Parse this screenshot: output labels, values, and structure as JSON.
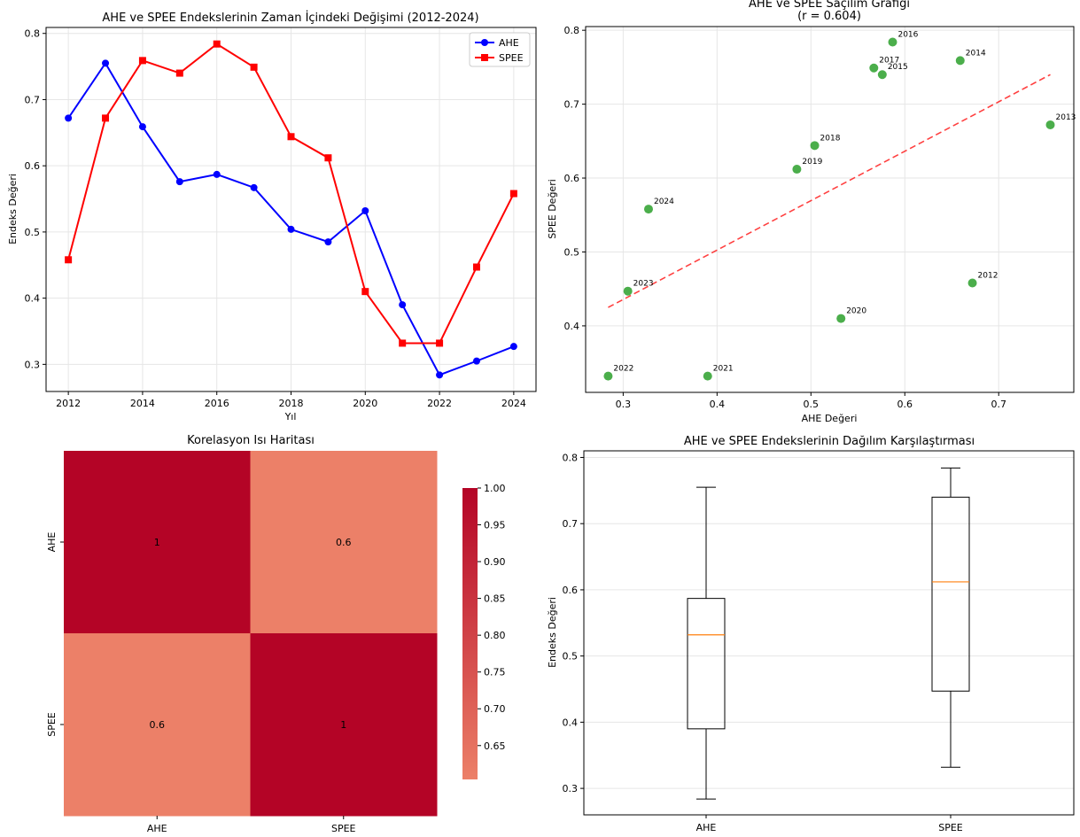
{
  "chart_data": [
    {
      "type": "line",
      "title": "AHE ve SPEE Endekslerinin Zaman İçindeki Değişimi (2012-2024)",
      "xlabel": "Yıl",
      "ylabel": "Endeks Değeri",
      "x": [
        2012,
        2013,
        2014,
        2015,
        2016,
        2017,
        2018,
        2019,
        2020,
        2021,
        2022,
        2023,
        2024
      ],
      "series": [
        {
          "name": "AHE",
          "color": "#0000ff",
          "marker": "circle",
          "values": [
            0.672,
            0.755,
            0.659,
            0.576,
            0.587,
            0.567,
            0.504,
            0.485,
            0.532,
            0.39,
            0.284,
            0.305,
            0.327
          ]
        },
        {
          "name": "SPEE",
          "color": "#ff0000",
          "marker": "square",
          "values": [
            0.458,
            0.672,
            0.759,
            0.74,
            0.784,
            0.749,
            0.644,
            0.612,
            0.41,
            0.332,
            0.332,
            0.447,
            0.558
          ]
        }
      ],
      "xlim": [
        2011.4,
        2024.6
      ],
      "ylim": [
        0.259,
        0.809
      ],
      "xticks": [
        "2012",
        "2014",
        "2016",
        "2018",
        "2020",
        "2022",
        "2024"
      ],
      "yticks": [
        "0.3",
        "0.4",
        "0.5",
        "0.6",
        "0.7",
        "0.8"
      ],
      "grid": true,
      "legend": "top-right"
    },
    {
      "type": "scatter",
      "title": "AHE ve SPEE Saçılım Grafiği",
      "subtitle": "(r = 0.604)",
      "xlabel": "AHE Değeri",
      "ylabel": "SPEE Değeri",
      "color": "#2ca02c",
      "points": [
        {
          "label": "2012",
          "x": 0.672,
          "y": 0.458
        },
        {
          "label": "2013",
          "x": 0.755,
          "y": 0.672
        },
        {
          "label": "2014",
          "x": 0.659,
          "y": 0.759
        },
        {
          "label": "2015",
          "x": 0.576,
          "y": 0.74
        },
        {
          "label": "2016",
          "x": 0.587,
          "y": 0.784
        },
        {
          "label": "2017",
          "x": 0.567,
          "y": 0.749
        },
        {
          "label": "2018",
          "x": 0.504,
          "y": 0.644
        },
        {
          "label": "2019",
          "x": 0.485,
          "y": 0.612
        },
        {
          "label": "2020",
          "x": 0.532,
          "y": 0.41
        },
        {
          "label": "2021",
          "x": 0.39,
          "y": 0.332
        },
        {
          "label": "2022",
          "x": 0.284,
          "y": 0.332
        },
        {
          "label": "2023",
          "x": 0.305,
          "y": 0.447
        },
        {
          "label": "2024",
          "x": 0.327,
          "y": 0.558
        }
      ],
      "trendline": {
        "color": "#ff0000",
        "style": "dashed",
        "x": [
          0.284,
          0.755
        ],
        "y": [
          0.425,
          0.74
        ]
      },
      "xlim": [
        0.26,
        0.78
      ],
      "ylim": [
        0.31,
        0.805
      ],
      "xticks": [
        "0.3",
        "0.4",
        "0.5",
        "0.6",
        "0.7"
      ],
      "yticks": [
        "0.4",
        "0.5",
        "0.6",
        "0.7",
        "0.8"
      ],
      "grid": true
    },
    {
      "type": "heatmap",
      "title": "Korelasyon Isı Haritası",
      "rows": [
        "AHE",
        "SPEE"
      ],
      "cols": [
        "AHE",
        "SPEE"
      ],
      "values": [
        [
          1,
          0.6
        ],
        [
          0.6,
          1
        ]
      ],
      "cell_labels": [
        [
          "1",
          "0.6"
        ],
        [
          "0.6",
          "1"
        ]
      ],
      "colors": {
        "high": "#b40426",
        "low": "#ec8068"
      },
      "colorbar": {
        "min": 0.604,
        "max": 1.0,
        "ticks": [
          "1.00",
          "0.95",
          "0.90",
          "0.85",
          "0.80",
          "0.75",
          "0.70",
          "0.65"
        ]
      }
    },
    {
      "type": "box",
      "title": "AHE ve SPEE Endekslerinin Dağılım Karşılaştırması",
      "ylabel": "Endeks Değeri",
      "categories": [
        "AHE",
        "SPEE"
      ],
      "boxes": [
        {
          "name": "AHE",
          "min": 0.284,
          "q1": 0.39,
          "median": 0.532,
          "q3": 0.587,
          "max": 0.755
        },
        {
          "name": "SPEE",
          "min": 0.332,
          "q1": 0.447,
          "median": 0.612,
          "q3": 0.74,
          "max": 0.784
        }
      ],
      "median_color": "#ff7f0e",
      "ylim": [
        0.26,
        0.81
      ],
      "yticks": [
        "0.3",
        "0.4",
        "0.5",
        "0.6",
        "0.7",
        "0.8"
      ],
      "grid": true
    }
  ]
}
